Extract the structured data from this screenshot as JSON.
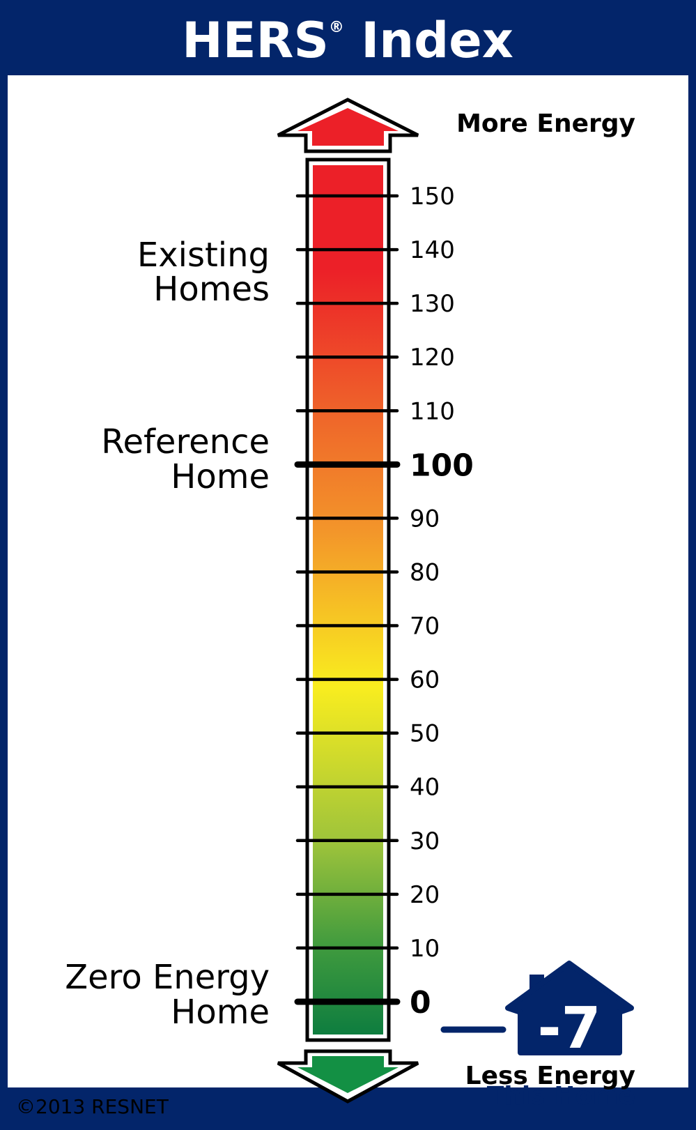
{
  "header": {
    "title": "HERS",
    "registered": "®",
    "title_suffix": "Index"
  },
  "labels": {
    "more_energy": "More Energy",
    "less_energy": "Less Energy",
    "existing_homes": [
      "Existing",
      "Homes"
    ],
    "reference_home": [
      "Reference",
      "Home"
    ],
    "zero_energy_home": [
      "Zero Energy",
      "Home"
    ],
    "this_home": "This Home",
    "copyright": "©2013 RESNET"
  },
  "colors": {
    "navy": "#03256a",
    "red": "#ec2028",
    "orange": "#f3902a",
    "yellow": "#f9ed1f",
    "lime": "#9dc33b",
    "green": "#0e7d3f"
  },
  "chart_data": {
    "type": "gauge",
    "title": "HERS® Index",
    "axis_range": [
      0,
      150
    ],
    "ticks": [
      0,
      10,
      20,
      30,
      40,
      50,
      60,
      70,
      80,
      90,
      100,
      110,
      120,
      130,
      140,
      150
    ],
    "tick_labels": [
      "0",
      "10",
      "20",
      "30",
      "40",
      "50",
      "60",
      "70",
      "80",
      "90",
      "100",
      "110",
      "120",
      "130",
      "140",
      "150"
    ],
    "emphasized_ticks": [
      0,
      100
    ],
    "annotations": [
      {
        "text": "Existing Homes",
        "value": 135
      },
      {
        "text": "Reference Home",
        "value": 100
      },
      {
        "text": "Zero Energy Home",
        "value": 0
      }
    ],
    "this_home_value": "-7"
  }
}
